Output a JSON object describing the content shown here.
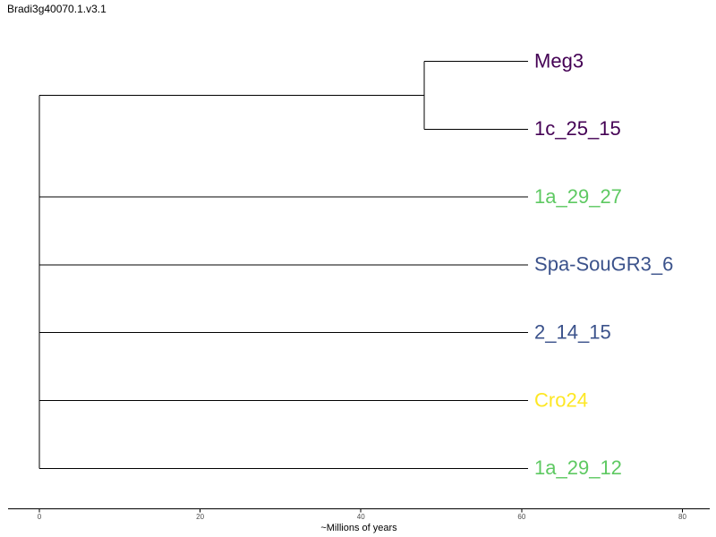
{
  "chart_data": {
    "type": "phylogenetic-tree",
    "title": "Bradi3g40070.1.v3.1",
    "xlabel": "~Millions of years",
    "xlim": [
      -3.9,
      83.4
    ],
    "x_ticks": [
      0,
      20,
      40,
      60,
      80
    ],
    "tips": [
      {
        "label": "Meg3",
        "color": "#440154",
        "x": 60.8
      },
      {
        "label": "1c_25_15",
        "color": "#440154",
        "x": 60.8
      },
      {
        "label": "1a_29_27",
        "color": "#5ec962",
        "x": 60.8
      },
      {
        "label": "Spa-SouGR3_6",
        "color": "#3b528b",
        "x": 60.8
      },
      {
        "label": "2_14_15",
        "color": "#3b528b",
        "x": 60.8
      },
      {
        "label": "Cro24",
        "color": "#fde725",
        "x": 60.8
      },
      {
        "label": "1a_29_12",
        "color": "#5ec962",
        "x": 60.8
      }
    ],
    "internal_nodes": [
      {
        "name": "meg3-1c_25_15",
        "x": 47.9,
        "children": [
          0,
          1
        ]
      },
      {
        "name": "root",
        "x": 0,
        "children": [
          "meg3-1c_25_15",
          2,
          3,
          4,
          5,
          6
        ]
      }
    ]
  }
}
